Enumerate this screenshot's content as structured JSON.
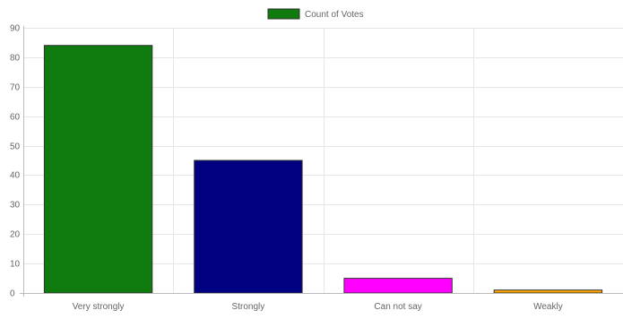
{
  "chart_data": {
    "type": "bar",
    "categories": [
      "Very strongly",
      "Strongly",
      "Can not say",
      "Weakly"
    ],
    "series": [
      {
        "name": "Count of Votes",
        "values": [
          84,
          45,
          5,
          1
        ]
      }
    ],
    "bar_colors": [
      "#0f7b0f",
      "#000080",
      "#ff00ff",
      "#ffa500"
    ],
    "legend_color": "#0f7b0f",
    "ylim": [
      0,
      90
    ],
    "yticks": [
      0,
      10,
      20,
      30,
      40,
      50,
      60,
      70,
      80,
      90
    ],
    "grid": true,
    "legend_position": "top-center"
  }
}
